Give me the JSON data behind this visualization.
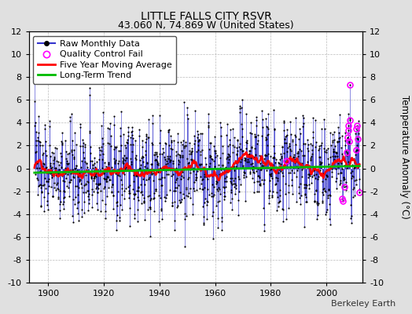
{
  "title": "LITTLE FALLS CITY RSVR",
  "subtitle": "43.060 N, 74.869 W (United States)",
  "ylabel": "Temperature Anomaly (°C)",
  "xlabel_ticks": [
    1900,
    1920,
    1940,
    1960,
    1980,
    2000
  ],
  "ylim": [
    -10,
    12
  ],
  "yticks": [
    -10,
    -8,
    -6,
    -4,
    -2,
    0,
    2,
    4,
    6,
    8,
    10,
    12
  ],
  "xlim": [
    1893,
    2013
  ],
  "start_year": 1895,
  "end_year": 2011,
  "raw_color": "#3333cc",
  "dot_color": "#000000",
  "qc_color": "#ff00ff",
  "moving_avg_color": "#ff0000",
  "trend_color": "#00bb00",
  "background_color": "#e0e0e0",
  "plot_bg_color": "#ffffff",
  "watermark": "Berkeley Earth",
  "seed": 137,
  "noise_std": 2.2,
  "trend_slope": 0.005,
  "trend_intercept": -0.1,
  "title_fontsize": 10,
  "subtitle_fontsize": 9,
  "tick_fontsize": 8,
  "legend_fontsize": 8
}
